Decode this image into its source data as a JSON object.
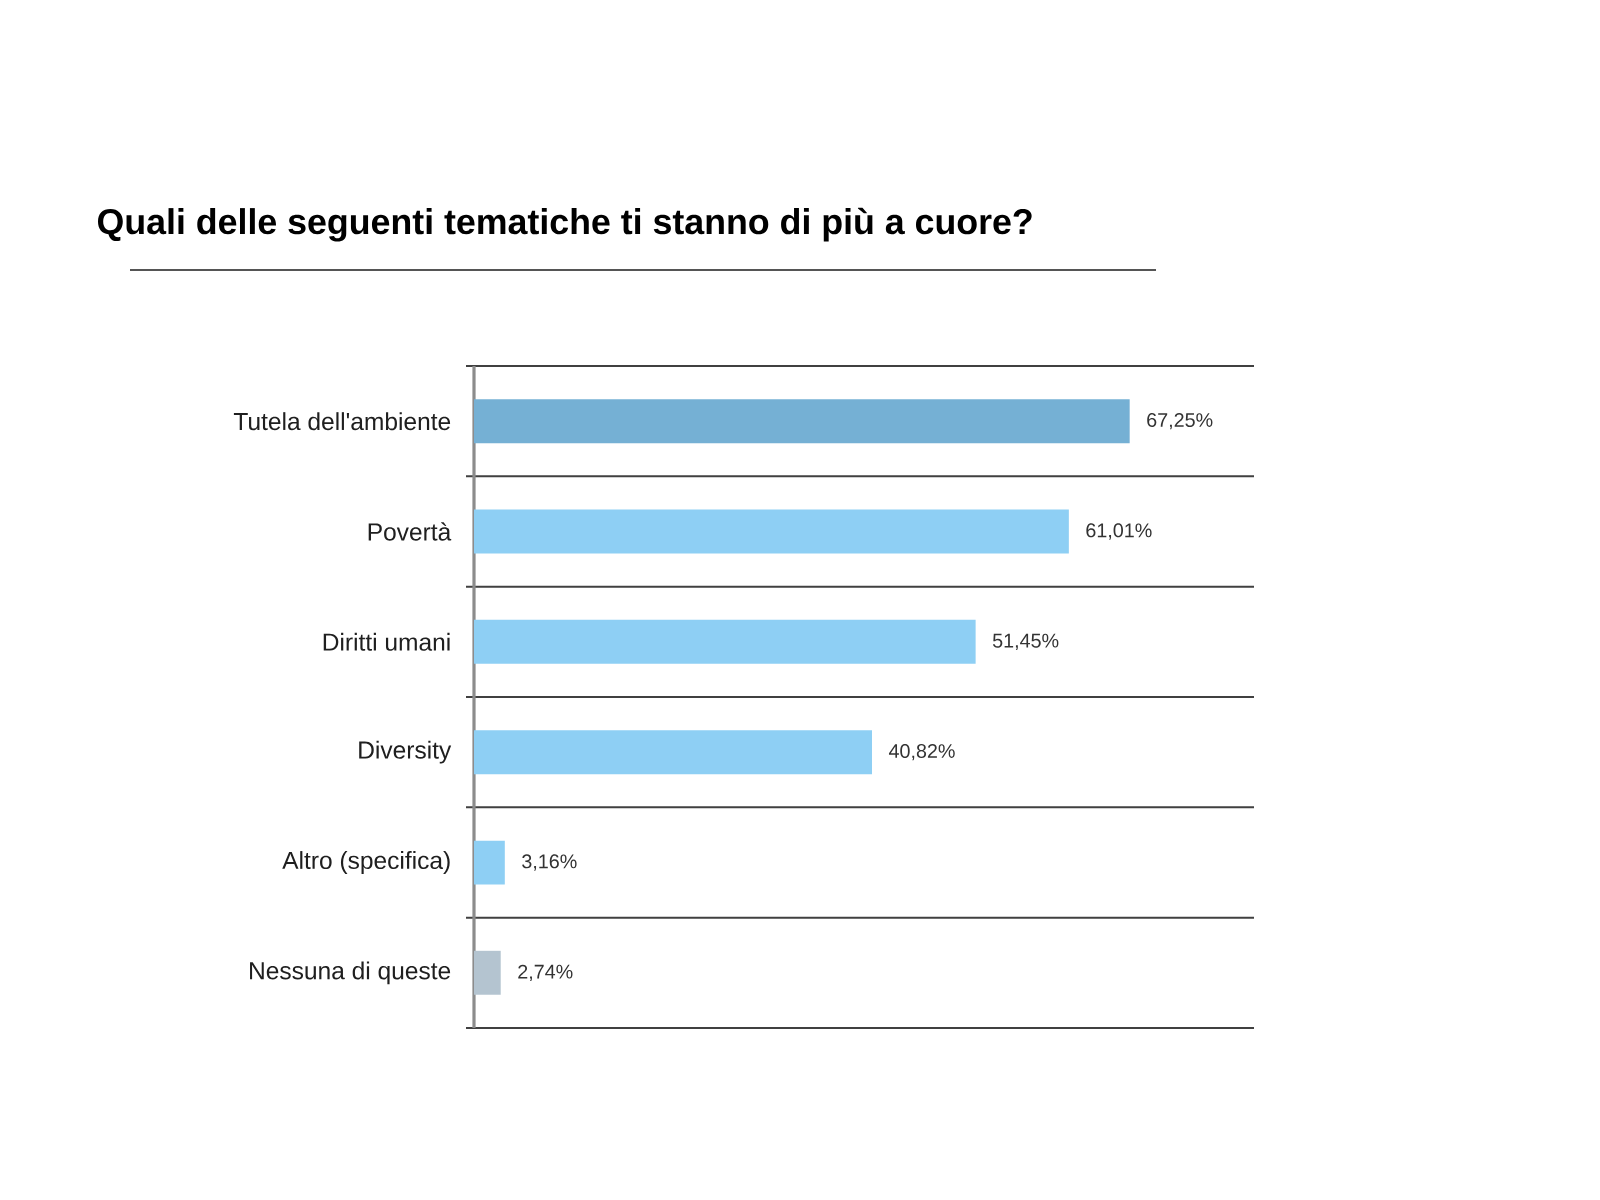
{
  "chart_data": {
    "type": "bar",
    "orientation": "horizontal",
    "title": "Quali delle seguenti tematiche ti stanno di più a cuore?",
    "categories": [
      "Tutela dell'ambiente",
      "Povertà",
      "Diritti umani",
      "Diversity",
      "Altro (specifica)",
      "Nessuna di queste"
    ],
    "values": [
      67.25,
      61.01,
      51.45,
      40.82,
      3.16,
      2.74
    ],
    "value_labels": [
      "67,25%",
      "61,01%",
      "51,45%",
      "40,82%",
      "3,16%",
      "2,74%"
    ],
    "colors": [
      "#75b0d4",
      "#8ecff4",
      "#8ecff4",
      "#8ecff4",
      "#8ecff4",
      "#b4c4d0"
    ],
    "xlim": [
      0,
      80
    ],
    "grid": "y",
    "tick_labels": "y"
  }
}
